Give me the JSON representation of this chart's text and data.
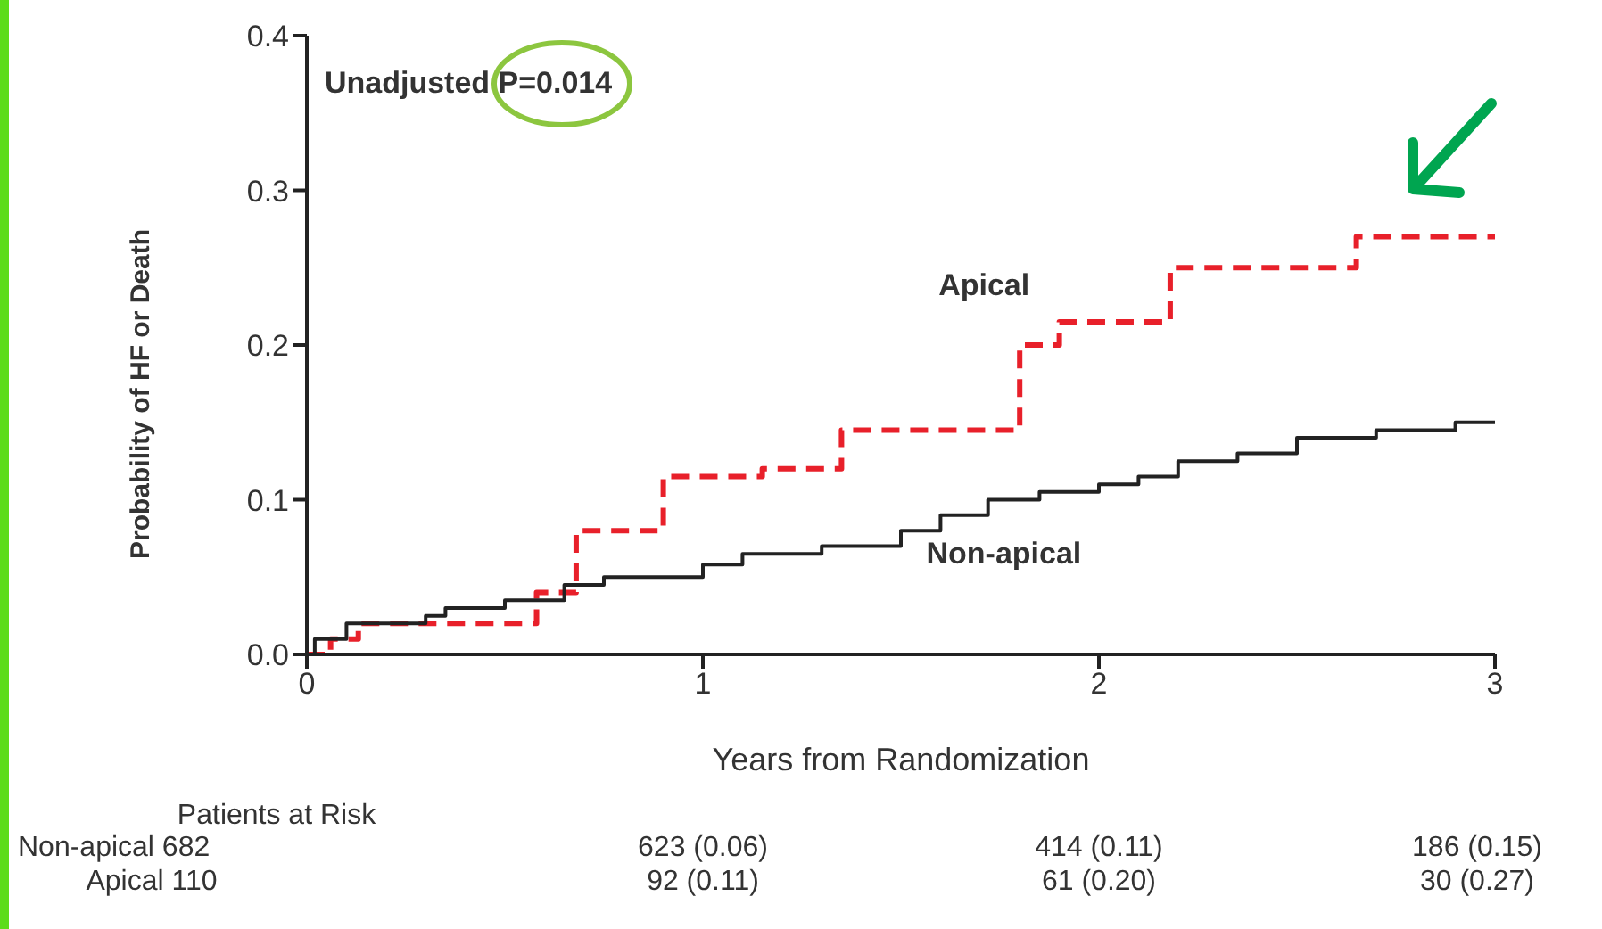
{
  "chart_data": {
    "type": "step",
    "xlabel": "Years from Randomization",
    "ylabel": "Probability of HF or Death",
    "xlim": [
      0,
      3
    ],
    "xticks": [
      0,
      1,
      2,
      3
    ],
    "ylim": [
      0,
      0.4
    ],
    "yticks": [
      {
        "value": 0,
        "label": "0.0"
      },
      {
        "value": 0.1,
        "label": "0.1"
      },
      {
        "value": 0.2,
        "label": "0.2"
      },
      {
        "value": 0.3,
        "label": "0.3"
      },
      {
        "value": 0.4,
        "label": "0.4"
      }
    ],
    "grid": false,
    "legend": false,
    "marker": "none",
    "series": [
      {
        "name": "Apical",
        "color": "#e8202a",
        "line_style": "dashed",
        "x": [
          0,
          0.06,
          0.13,
          0.58,
          0.68,
          0.9,
          1.15,
          1.35,
          1.8,
          1.9,
          2.18,
          2.65,
          3
        ],
        "values": [
          0,
          0.01,
          0.02,
          0.04,
          0.08,
          0.115,
          0.12,
          0.145,
          0.2,
          0.215,
          0.25,
          0.27,
          0.27
        ]
      },
      {
        "name": "Non-apical",
        "color": "#222222",
        "line_style": "solid",
        "x": [
          0,
          0.02,
          0.1,
          0.3,
          0.35,
          0.5,
          0.65,
          0.75,
          1.0,
          1.1,
          1.3,
          1.5,
          1.6,
          1.72,
          1.85,
          2.0,
          2.1,
          2.2,
          2.35,
          2.5,
          2.7,
          2.9,
          3
        ],
        "values": [
          0,
          0.01,
          0.02,
          0.025,
          0.03,
          0.035,
          0.045,
          0.05,
          0.058,
          0.065,
          0.07,
          0.08,
          0.09,
          0.1,
          0.105,
          0.11,
          0.115,
          0.125,
          0.13,
          0.14,
          0.145,
          0.15,
          0.15
        ]
      }
    ],
    "annotations": [
      "Unadjusted P=0.014",
      "Patients at Risk",
      "Non-apical 682",
      "623 (0.06)",
      "414 (0.11)",
      "186 (0.15)",
      "Apical 110",
      "92 (0.11)",
      "61 (0.20)",
      "30 (0.27)"
    ]
  }
}
